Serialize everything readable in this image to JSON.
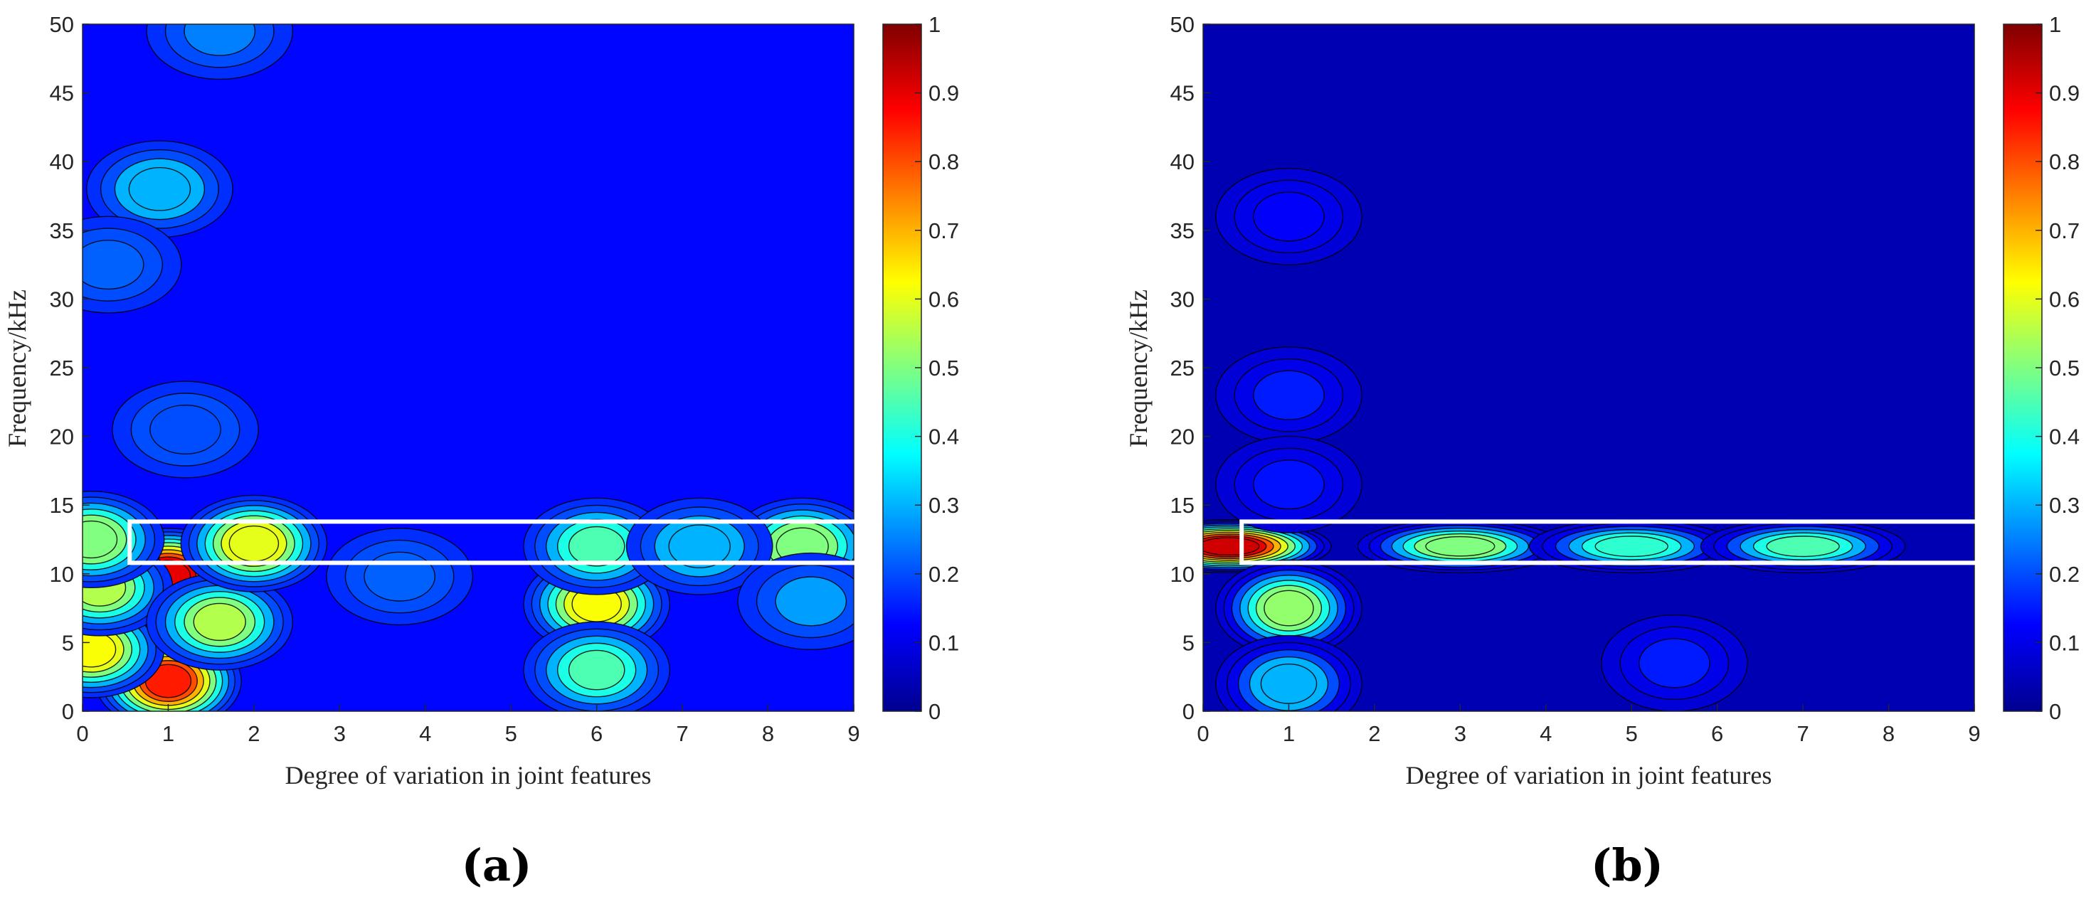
{
  "figure": {
    "panel_labels": [
      "(a)",
      "(b)"
    ]
  },
  "colors": {
    "colormap": [
      "#00008f",
      "#0000ff",
      "#0080ff",
      "#00ffff",
      "#80ff80",
      "#ffff00",
      "#ff8000",
      "#ff0000",
      "#800000"
    ],
    "highlight_box": "#ffffff",
    "contour_line": "#000000"
  },
  "chart_data": [
    {
      "type": "heatmap",
      "panel": "(a)",
      "title": "",
      "xlabel": "Degree of variation in joint features",
      "ylabel": "Frequency/kHz",
      "xlim": [
        0,
        9
      ],
      "ylim": [
        0,
        50
      ],
      "xticks": [
        0,
        1,
        2,
        3,
        4,
        5,
        6,
        7,
        8,
        9
      ],
      "yticks": [
        0,
        5,
        10,
        15,
        20,
        25,
        30,
        35,
        40,
        45,
        50
      ],
      "colorbar": {
        "ticks": [
          0,
          0.1,
          0.2,
          0.3,
          0.4,
          0.5,
          0.6,
          0.7,
          0.8,
          0.9,
          1
        ],
        "range": [
          0,
          1
        ]
      },
      "contour_levels": [
        0.1,
        0.2,
        0.3,
        0.4,
        0.5,
        0.6,
        0.7,
        0.8,
        0.9
      ],
      "background_level": 0.13,
      "peaks": [
        {
          "x": 1.0,
          "y": 2.2,
          "value": 0.85
        },
        {
          "x": 0.1,
          "y": 4.5,
          "value": 0.62
        },
        {
          "x": 1.0,
          "y": 9.8,
          "value": 0.9
        },
        {
          "x": 0.2,
          "y": 9.0,
          "value": 0.55
        },
        {
          "x": 1.6,
          "y": 6.5,
          "value": 0.55
        },
        {
          "x": 2.0,
          "y": 12.2,
          "value": 0.6
        },
        {
          "x": 0.1,
          "y": 12.5,
          "value": 0.5
        },
        {
          "x": 6.0,
          "y": 7.8,
          "value": 0.62
        },
        {
          "x": 6.0,
          "y": 3.0,
          "value": 0.45
        },
        {
          "x": 6.0,
          "y": 12.0,
          "value": 0.45
        },
        {
          "x": 8.4,
          "y": 12.0,
          "value": 0.5
        },
        {
          "x": 7.2,
          "y": 12.0,
          "value": 0.3
        },
        {
          "x": 8.5,
          "y": 8.0,
          "value": 0.28
        },
        {
          "x": 0.9,
          "y": 38.0,
          "value": 0.3
        },
        {
          "x": 0.3,
          "y": 32.5,
          "value": 0.22
        },
        {
          "x": 1.2,
          "y": 20.5,
          "value": 0.2
        },
        {
          "x": 1.6,
          "y": 49.5,
          "value": 0.25
        },
        {
          "x": 3.7,
          "y": 9.8,
          "value": 0.22
        }
      ],
      "highlight_box": {
        "x0": 0.55,
        "x1": 9.45,
        "y0": 10.8,
        "y1": 13.8
      }
    },
    {
      "type": "heatmap",
      "panel": "(b)",
      "title": "",
      "xlabel": "Degree of variation in joint features",
      "ylabel": "Frequency/kHz",
      "xlim": [
        0,
        9
      ],
      "ylim": [
        0,
        50
      ],
      "xticks": [
        0,
        1,
        2,
        3,
        4,
        5,
        6,
        7,
        8,
        9
      ],
      "yticks": [
        0,
        5,
        10,
        15,
        20,
        25,
        30,
        35,
        40,
        45,
        50
      ],
      "colorbar": {
        "ticks": [
          0,
          0.1,
          0.2,
          0.3,
          0.4,
          0.5,
          0.6,
          0.7,
          0.8,
          0.9,
          1
        ],
        "range": [
          0,
          1
        ]
      },
      "contour_levels": [
        0.1,
        0.2,
        0.3,
        0.4,
        0.5,
        0.6,
        0.7,
        0.8,
        0.9
      ],
      "background_level": 0.04,
      "peaks": [
        {
          "x": 0.3,
          "y": 12.0,
          "value": 0.92
        },
        {
          "x": 1.0,
          "y": 7.5,
          "value": 0.52
        },
        {
          "x": 3.0,
          "y": 12.0,
          "value": 0.5
        },
        {
          "x": 5.0,
          "y": 12.0,
          "value": 0.42
        },
        {
          "x": 7.0,
          "y": 12.0,
          "value": 0.45
        },
        {
          "x": 1.0,
          "y": 2.0,
          "value": 0.3
        },
        {
          "x": 1.0,
          "y": 23.0,
          "value": 0.15
        },
        {
          "x": 1.0,
          "y": 36.0,
          "value": 0.12
        },
        {
          "x": 1.0,
          "y": 16.5,
          "value": 0.14
        },
        {
          "x": 5.5,
          "y": 3.5,
          "value": 0.15
        }
      ],
      "highlight_box": {
        "x0": 0.45,
        "x1": 9.45,
        "y0": 10.8,
        "y1": 13.8
      }
    }
  ]
}
